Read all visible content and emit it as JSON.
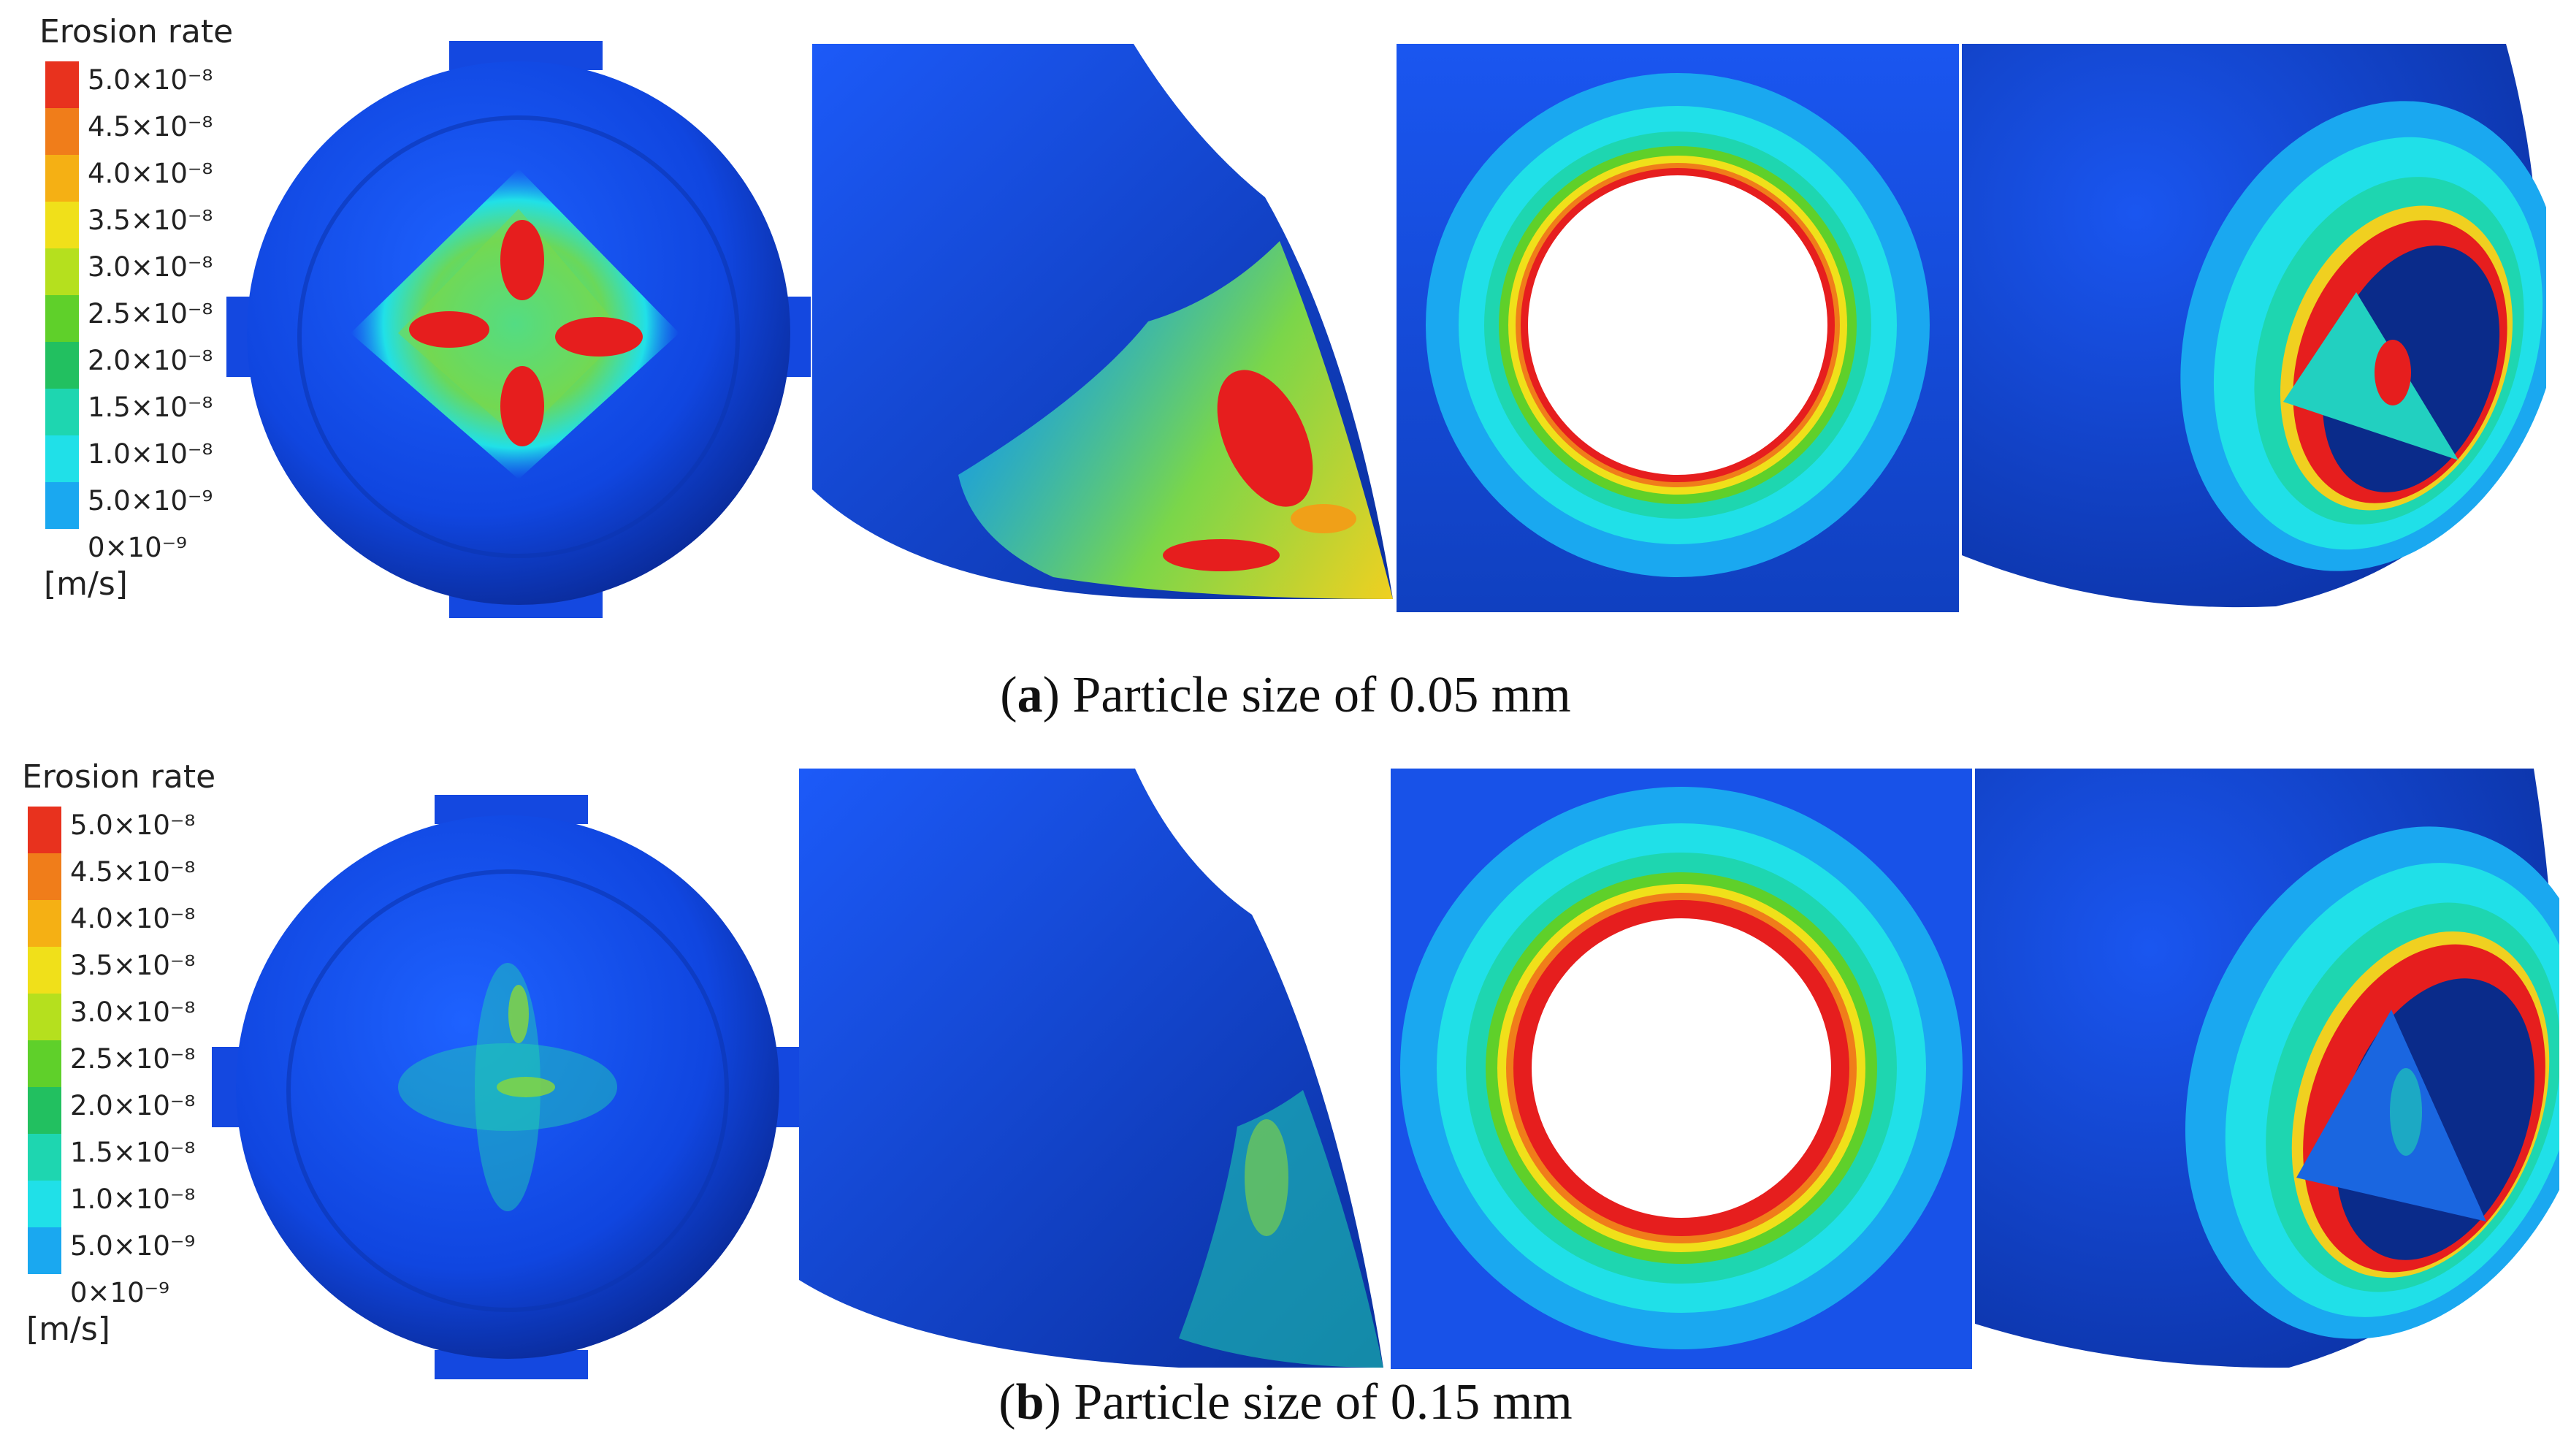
{
  "legend": {
    "title": "Erosion rate",
    "unit": "[m/s]",
    "ticks": [
      "5.0×10⁻⁸",
      "4.5×10⁻⁸",
      "4.0×10⁻⁸",
      "3.5×10⁻⁸",
      "3.0×10⁻⁸",
      "2.5×10⁻⁸",
      "2.0×10⁻⁸",
      "1.5×10⁻⁸",
      "1.0×10⁻⁸",
      "5.0×10⁻⁹",
      "0×10⁻⁹"
    ],
    "colors": [
      "#e8321e",
      "#f07d1a",
      "#f5b014",
      "#f0e01a",
      "#b5e01e",
      "#5fd02a",
      "#22c060",
      "#1ed6b0",
      "#20e0e8",
      "#1aa8f0",
      "#1050e8"
    ]
  },
  "panels": [
    {
      "id": "a",
      "letter": "a",
      "caption": "Particle size of 0.05 mm"
    },
    {
      "id": "b",
      "letter": "b",
      "caption": "Particle size of 0.15 mm"
    }
  ]
}
